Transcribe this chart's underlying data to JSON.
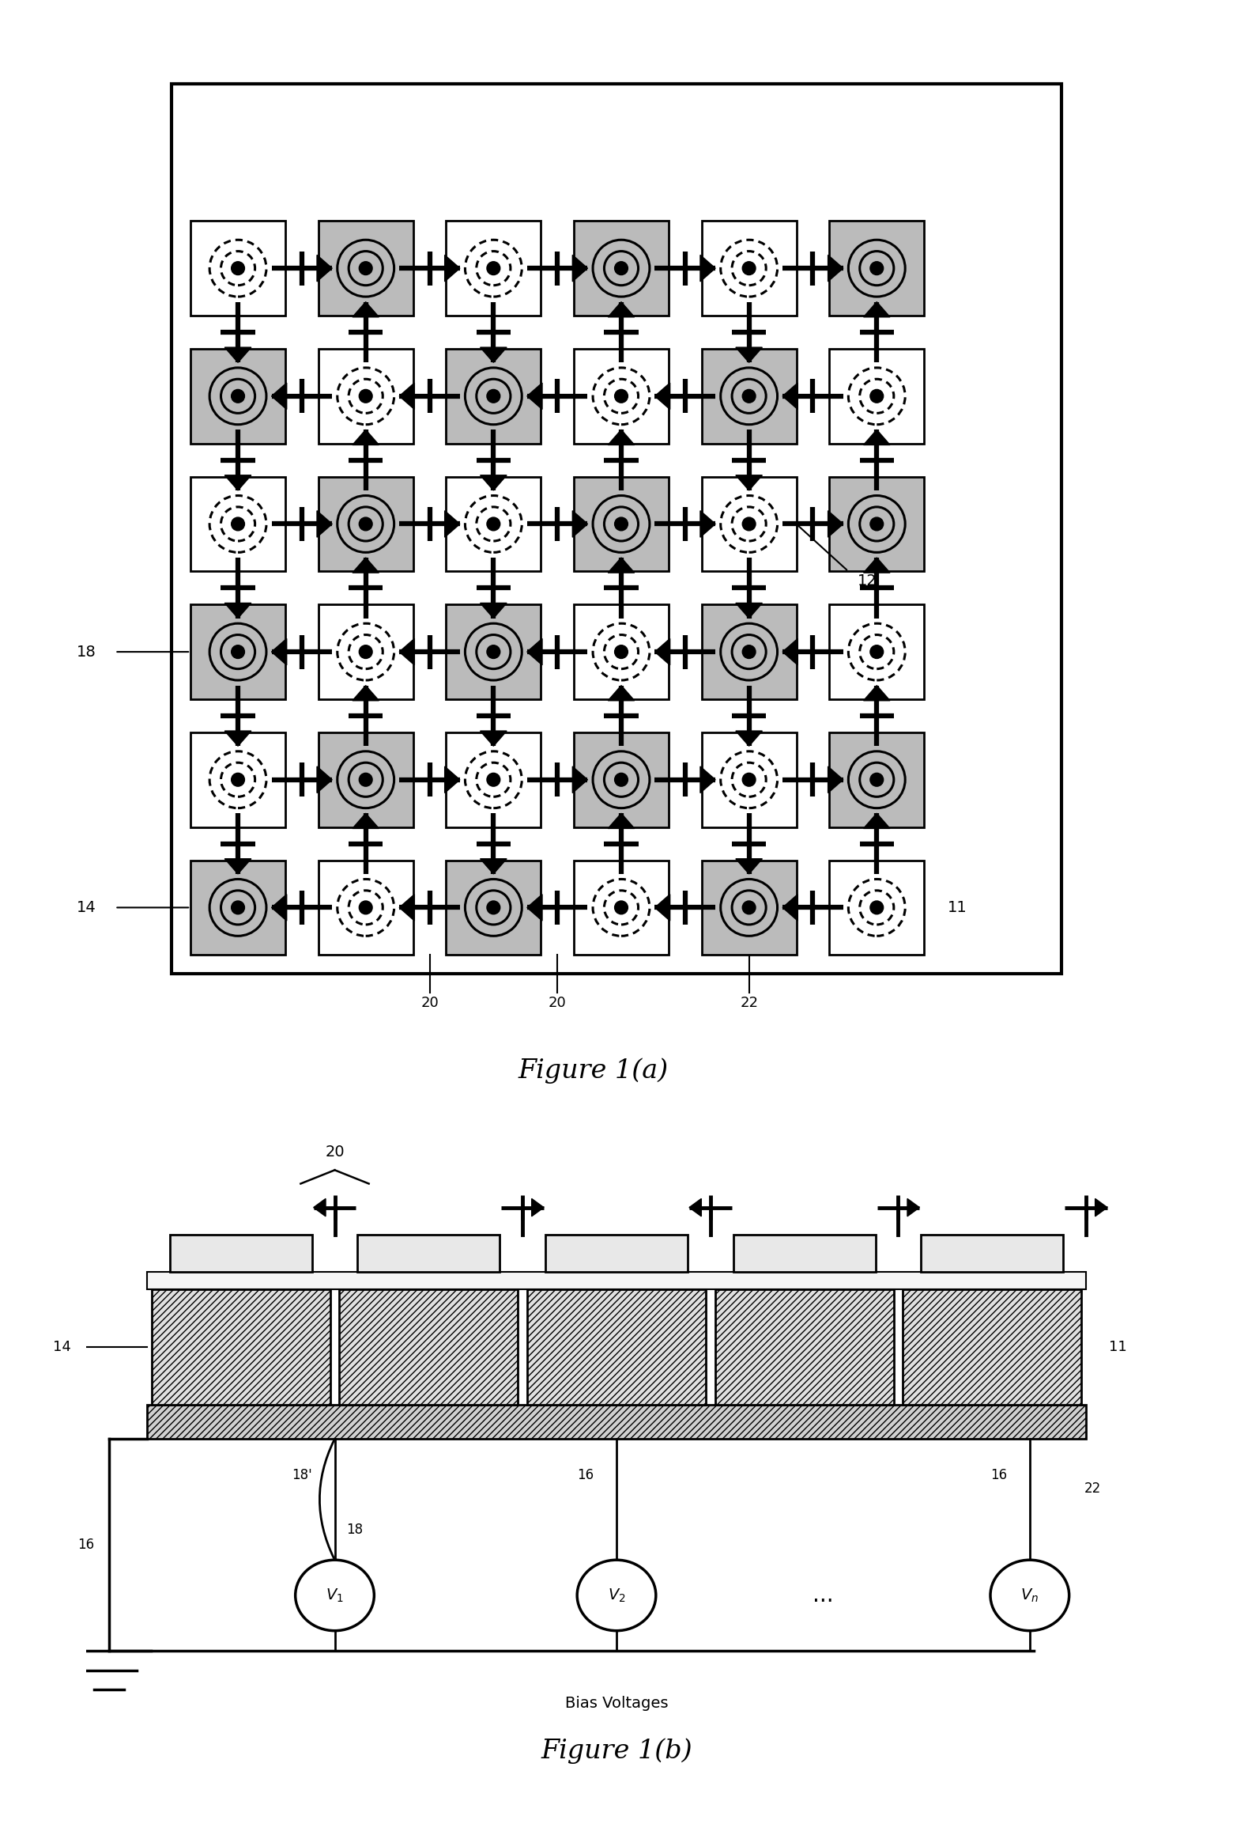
{
  "fig1a_title": "Figure 1(a)",
  "fig1b_title": "Figure 1(b)",
  "label_12": "12",
  "label_11_a": "11",
  "label_14_a": "14",
  "label_18_a": "18",
  "label_20_a1": "20",
  "label_20_a2": "20",
  "label_22_a": "22",
  "label_14_b": "14",
  "label_16_b1": "16",
  "label_16_b2": "16",
  "label_16_b3": "16",
  "label_18p_b": "18'",
  "label_18_b": "18",
  "label_20_b": "20",
  "label_22_b": "22",
  "label_11_b": "11",
  "label_bias": "Bias Voltages",
  "bg_color": "#ffffff",
  "shaded_color": "#bbbbbb"
}
